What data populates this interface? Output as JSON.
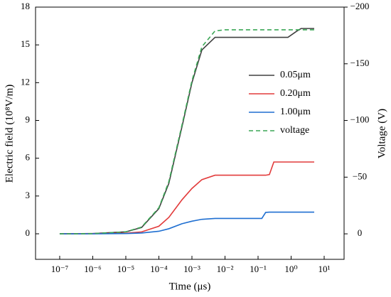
{
  "chart_data": {
    "type": "line",
    "xlabel": "Time (μs)",
    "ylabel": "Electric field (10⁸V/m)",
    "y2label": "Voltage (V)",
    "xscale": "log",
    "xlim": [
      1.86e-08,
      40
    ],
    "xticks": [
      {
        "value": 1e-07,
        "label": "10⁻⁷"
      },
      {
        "value": 1e-06,
        "label": "10⁻⁶"
      },
      {
        "value": 1e-05,
        "label": "10⁻⁵"
      },
      {
        "value": 0.0001,
        "label": "10⁻⁴"
      },
      {
        "value": 0.001,
        "label": "10⁻³"
      },
      {
        "value": 0.01,
        "label": "10⁻²"
      },
      {
        "value": 0.1,
        "label": "10⁻¹"
      },
      {
        "value": 1,
        "label": "10⁰"
      },
      {
        "value": 10,
        "label": "10¹"
      }
    ],
    "ylim": [
      -2.03,
      18
    ],
    "yticks": [
      0,
      3,
      6,
      9,
      12,
      15,
      18
    ],
    "y2lim": [
      22.5,
      -200
    ],
    "y2ticks": [
      0,
      {
        "value": -50,
        "label": "−50"
      },
      {
        "value": -100,
        "label": "−100"
      },
      {
        "value": -150,
        "label": "−150"
      },
      {
        "value": -200,
        "label": "−200"
      }
    ],
    "legend": "right",
    "x": [
      1e-07,
      1e-06,
      1e-05,
      3e-05,
      0.0001,
      0.0002,
      0.0005,
      0.001,
      0.002,
      0.005,
      0.01,
      0.1,
      0.13,
      0.17,
      0.22,
      0.3,
      0.8,
      1.5,
      2,
      5
    ],
    "series": [
      {
        "name": "0.05μm",
        "color": "#404040",
        "dash": false,
        "values": [
          0,
          0.02,
          0.15,
          0.5,
          2,
          4,
          8.5,
          12,
          14.6,
          15.6,
          15.6,
          15.6,
          15.6,
          15.6,
          15.6,
          15.6,
          15.6,
          16.1,
          16.3,
          16.3
        ]
      },
      {
        "name": "0.20μm",
        "color": "#e23b3b",
        "dash": false,
        "values": [
          0,
          0.01,
          0.05,
          0.15,
          0.6,
          1.3,
          2.7,
          3.6,
          4.3,
          4.65,
          4.65,
          4.65,
          4.65,
          4.65,
          4.7,
          5.7,
          5.7,
          5.7,
          5.7,
          5.7
        ]
      },
      {
        "name": "1.00μm",
        "color": "#1f6fd1",
        "dash": false,
        "values": [
          0,
          0,
          0.02,
          0.06,
          0.2,
          0.4,
          0.8,
          1.0,
          1.15,
          1.22,
          1.22,
          1.22,
          1.22,
          1.7,
          1.72,
          1.72,
          1.72,
          1.72,
          1.72,
          1.72
        ]
      },
      {
        "name": "voltage",
        "color": "#3aa655",
        "dash": true,
        "axis": "y2",
        "values": [
          0,
          -0.2,
          -1.8,
          -6,
          -23,
          -46,
          -96,
          -135,
          -165,
          -179,
          -180,
          -180,
          -180,
          -180,
          -180,
          -180,
          -180,
          -180,
          -180,
          -180
        ]
      }
    ]
  }
}
